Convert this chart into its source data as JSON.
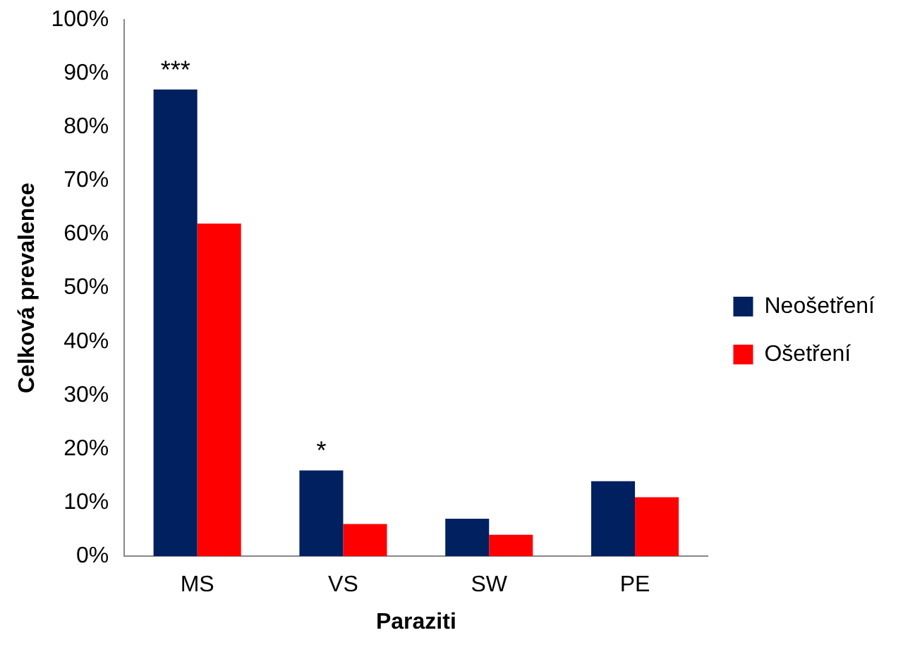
{
  "chart_data": {
    "type": "bar",
    "xlabel": "Paraziti",
    "ylabel": "Celková prevalence",
    "categories": [
      "MS",
      "VS",
      "SW",
      "PE"
    ],
    "series": [
      {
        "name": "Neošetření",
        "color": "#002060",
        "values": [
          87,
          16,
          7,
          14
        ]
      },
      {
        "name": "Ošetření",
        "color": "#ff0000",
        "values": [
          62,
          6,
          4,
          11
        ]
      }
    ],
    "ylim": [
      0,
      100
    ],
    "yticks": [
      {
        "value": 0,
        "label": "0%"
      },
      {
        "value": 10,
        "label": "10%"
      },
      {
        "value": 20,
        "label": "20%"
      },
      {
        "value": 30,
        "label": "30%"
      },
      {
        "value": 40,
        "label": "40%"
      },
      {
        "value": 50,
        "label": "50%"
      },
      {
        "value": 60,
        "label": "60%"
      },
      {
        "value": 70,
        "label": "70%"
      },
      {
        "value": 80,
        "label": "80%"
      },
      {
        "value": 90,
        "label": "90%"
      },
      {
        "value": 100,
        "label": "100%"
      }
    ],
    "grid": false,
    "legend": "right",
    "annotations": [
      {
        "text": "***",
        "x": "MS",
        "y": 87
      },
      {
        "text": "*",
        "x": "VS",
        "y": 16
      }
    ]
  }
}
